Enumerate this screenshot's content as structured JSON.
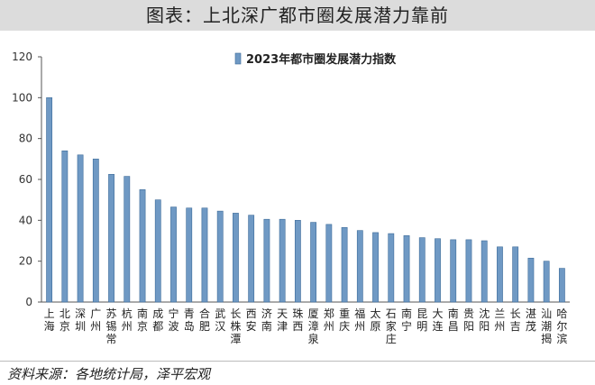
{
  "header": {
    "title": "图表：上北深广都市圈发展潜力靠前"
  },
  "source": "资料来源：各地统计局，泽平宏观",
  "chart_data": {
    "type": "bar",
    "legend": "2023年都市圈发展潜力指数",
    "categories": [
      "上海",
      "北京",
      "深圳",
      "广州",
      "苏锡常",
      "杭州",
      "南京",
      "成都",
      "宁波",
      "青岛",
      "合肥",
      "武汉",
      "长株潭",
      "西安",
      "济南",
      "天津",
      "珠西",
      "厦漳泉",
      "郑州",
      "重庆",
      "福州",
      "太原",
      "石家庄",
      "南宁",
      "昆明",
      "大连",
      "南昌",
      "贵阳",
      "沈阳",
      "兰州",
      "长吉",
      "湛茂",
      "汕潮揭",
      "哈尔滨"
    ],
    "values": [
      100,
      74,
      72,
      70,
      62.5,
      61.5,
      55,
      50,
      46.5,
      46,
      46,
      44.5,
      43.5,
      42.5,
      40.5,
      40.5,
      40,
      39,
      38,
      36.5,
      35,
      34,
      33.5,
      32.5,
      31.5,
      31,
      30.5,
      30.5,
      30,
      27,
      27,
      21.5,
      20,
      16.5
    ],
    "yticks": [
      0,
      20,
      40,
      60,
      80,
      100,
      120
    ],
    "ylim": [
      0,
      120
    ],
    "colors": {
      "bar_fill": "#6f99c4",
      "bar_stroke": "#3d6b99",
      "axis": "#555555"
    }
  }
}
